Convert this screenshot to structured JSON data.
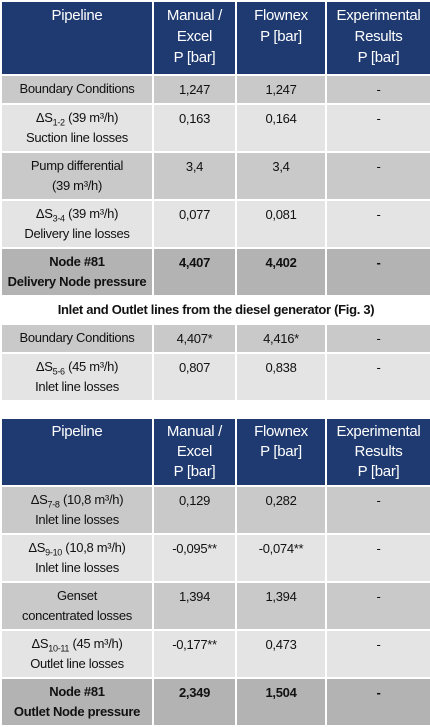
{
  "tables": [
    {
      "header": [
        [
          "Pipeline"
        ],
        [
          "Manual /",
          "Excel",
          "P [bar]"
        ],
        [
          "Flownex",
          "P [bar]"
        ],
        [
          "Experimental",
          "Results",
          "P [bar]"
        ]
      ],
      "rows": [
        {
          "pipeline": [
            "Boundary Conditions"
          ],
          "manual": "1,247",
          "flownex": "1,247",
          "experimental": "-"
        },
        {
          "pipeline": [
            {
              "pre": "ΔS",
              "sub": "1-2",
              "post": " (39 m³/h)"
            },
            "Suction line losses"
          ],
          "manual": "0,163",
          "flownex": "0,164",
          "experimental": "-"
        },
        {
          "pipeline": [
            "Pump differential",
            "(39 m³/h)"
          ],
          "manual": "3,4",
          "flownex": "3,4",
          "experimental": "-"
        },
        {
          "pipeline": [
            {
              "pre": "ΔS",
              "sub": "3-4",
              "post": " (39 m³/h)"
            },
            "Delivery line losses"
          ],
          "manual": "0,077",
          "flownex": "0,081",
          "experimental": "-"
        },
        {
          "pipeline": [
            "Node #81",
            "Delivery Node pressure"
          ],
          "manual": "4,407",
          "flownex": "4,402",
          "experimental": "-",
          "bold": true
        },
        {
          "span": "Inlet and Outlet lines from the diesel generator (Fig. 3)"
        },
        {
          "pipeline": [
            "Boundary Conditions"
          ],
          "manual": "4,407*",
          "flownex": "4,416*",
          "experimental": "-"
        },
        {
          "pipeline": [
            {
              "pre": "ΔS",
              "sub": "5-6",
              "post": " (45 m³/h)"
            },
            "Inlet line losses"
          ],
          "manual": "0,807",
          "flownex": "0,838",
          "experimental": "-"
        }
      ]
    },
    {
      "header": [
        [
          "Pipeline"
        ],
        [
          "Manual /",
          "Excel",
          "P [bar]"
        ],
        [
          "Flownex",
          "P [bar]"
        ],
        [
          "Experimental",
          "Results",
          "P [bar]"
        ]
      ],
      "rows": [
        {
          "pipeline": [
            {
              "pre": "ΔS",
              "sub": "7-8",
              "post": " (10,8 m³/h)"
            },
            "Inlet line losses"
          ],
          "manual": "0,129",
          "flownex": "0,282",
          "experimental": "-"
        },
        {
          "pipeline": [
            {
              "pre": "ΔS",
              "sub": "9-10",
              "post": " (10,8 m³/h)"
            },
            "Inlet line losses"
          ],
          "manual": "-0,095**",
          "flownex": "-0,074**",
          "experimental": "-"
        },
        {
          "pipeline": [
            "Genset",
            "concentrated losses"
          ],
          "manual": "1,394",
          "flownex": "1,394",
          "experimental": "-"
        },
        {
          "pipeline": [
            {
              "pre": "ΔS",
              "sub": "10-11",
              "post": " (45 m³/h)"
            },
            "Outlet line losses"
          ],
          "manual": "-0,177**",
          "flownex": "0,473",
          "experimental": "-"
        },
        {
          "pipeline": [
            "Node #81",
            "Outlet Node pressure"
          ],
          "manual": "2,349",
          "flownex": "1,504",
          "experimental": "-",
          "bold": true
        }
      ]
    }
  ]
}
